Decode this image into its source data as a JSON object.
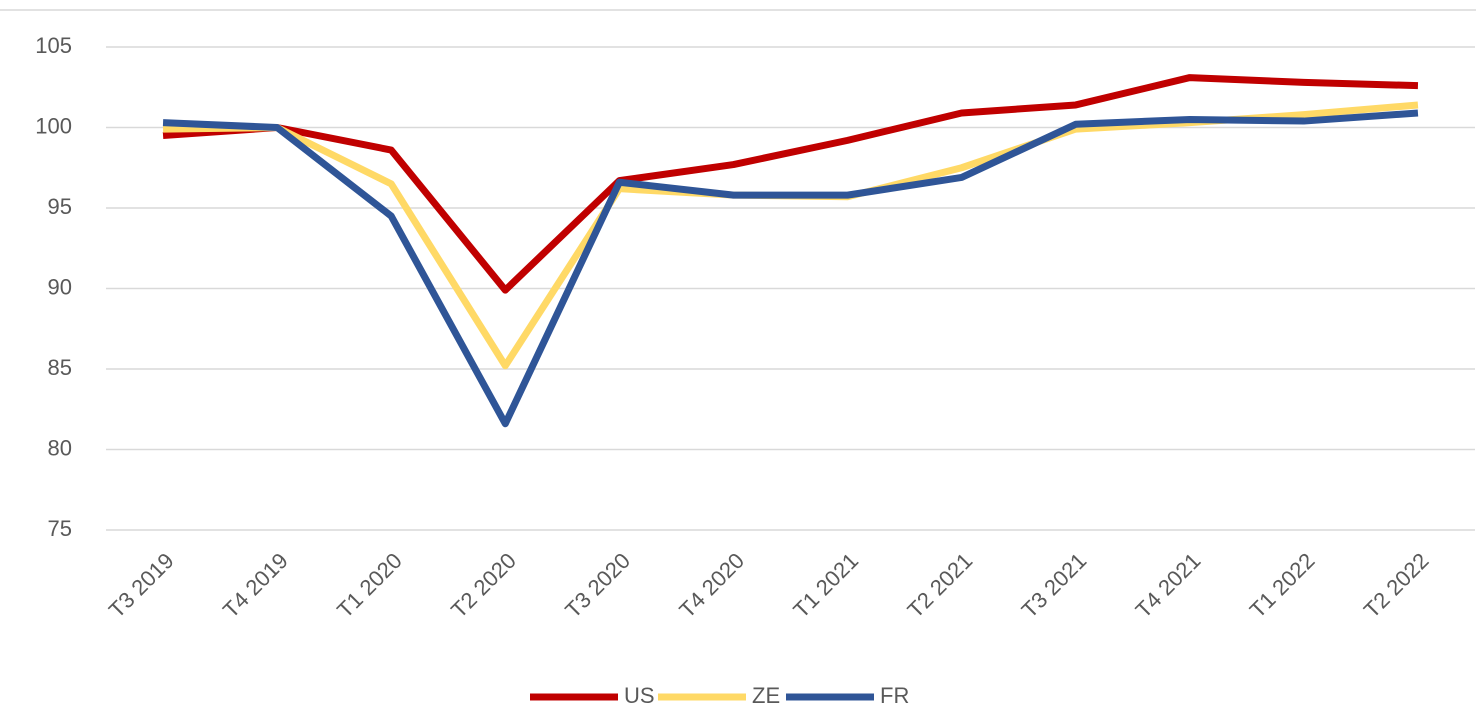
{
  "chart_data": {
    "type": "line",
    "categories": [
      "T3 2019",
      "T4 2019",
      "T1 2020",
      "T2 2020",
      "T3 2020",
      "T4 2020",
      "T1 2021",
      "T2 2021",
      "T3 2021",
      "T4 2021",
      "T1 2022",
      "T2 2022"
    ],
    "series": [
      {
        "name": "US",
        "color": "#c00000",
        "values": [
          99.5,
          100,
          98.6,
          89.9,
          96.7,
          97.7,
          99.2,
          100.9,
          101.4,
          103.1,
          102.8,
          102.6
        ]
      },
      {
        "name": "ZE",
        "color": "#ffd966",
        "values": [
          99.9,
          100,
          96.5,
          85.2,
          96.2,
          95.8,
          95.7,
          97.5,
          99.9,
          100.3,
          100.8,
          101.4
        ]
      },
      {
        "name": "FR",
        "color": "#2f5597",
        "values": [
          100.3,
          100,
          94.5,
          81.6,
          96.6,
          95.8,
          95.8,
          96.9,
          100.2,
          100.5,
          100.4,
          100.9
        ]
      }
    ],
    "ylim": [
      75,
      105
    ],
    "yticks": [
      75,
      80,
      85,
      90,
      95,
      100,
      105
    ],
    "grid": true,
    "legend": "bottom"
  }
}
